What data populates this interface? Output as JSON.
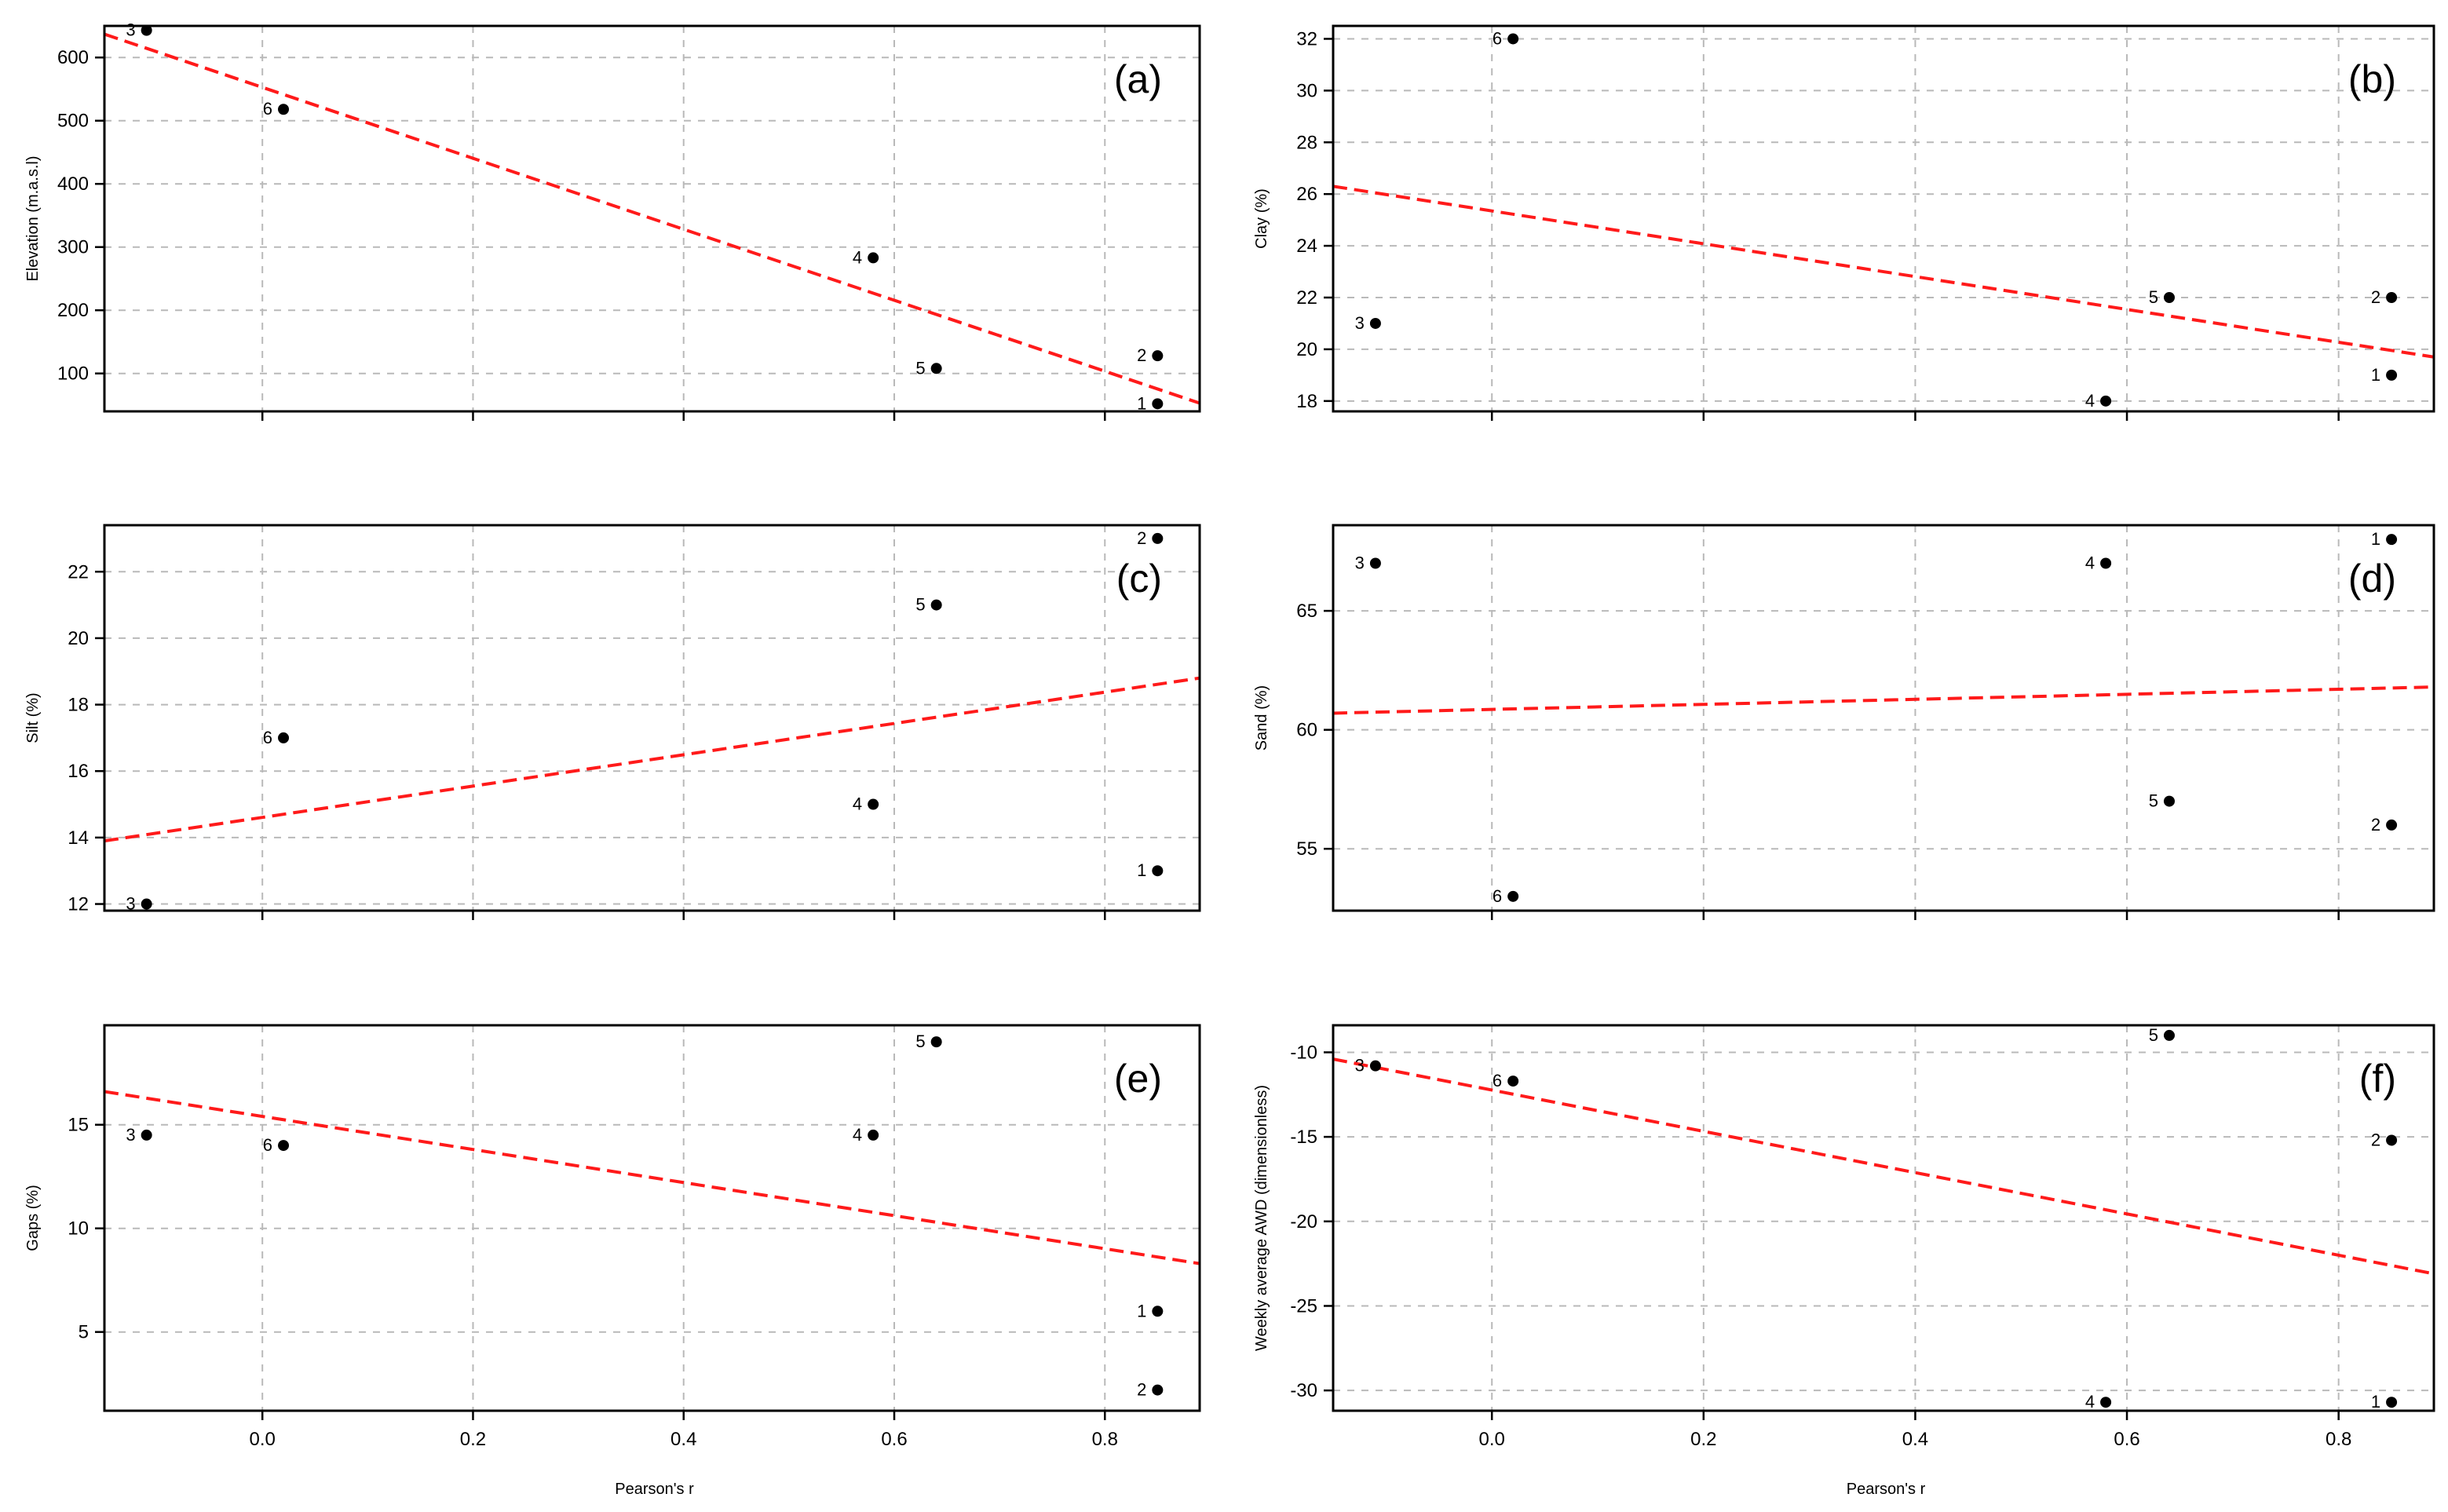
{
  "chart_data": [
    {
      "type": "scatter",
      "panel": "(a)",
      "ylabel": "Elevation (m.a.s.l)",
      "xlabel": "",
      "xlim": [
        -0.15,
        0.89
      ],
      "ylim": [
        40,
        650
      ],
      "xticks": [
        0.0,
        0.2,
        0.4,
        0.6,
        0.8
      ],
      "xticklabels": [],
      "yticks": [
        100,
        200,
        300,
        400,
        500,
        600
      ],
      "points": [
        {
          "label": "1",
          "x": 0.85,
          "y": 52
        },
        {
          "label": "2",
          "x": 0.85,
          "y": 128
        },
        {
          "label": "3",
          "x": -0.11,
          "y": 643
        },
        {
          "label": "4",
          "x": 0.58,
          "y": 283
        },
        {
          "label": "5",
          "x": 0.64,
          "y": 108
        },
        {
          "label": "6",
          "x": 0.02,
          "y": 518
        }
      ],
      "fit": {
        "x": [
          -0.15,
          0.89
        ],
        "y": [
          637,
          53
        ]
      }
    },
    {
      "type": "scatter",
      "panel": "(b)",
      "ylabel": "Clay (%)",
      "xlabel": "",
      "xlim": [
        -0.15,
        0.89
      ],
      "ylim": [
        17.6,
        32.5
      ],
      "xticks": [
        0.0,
        0.2,
        0.4,
        0.6,
        0.8
      ],
      "xticklabels": [],
      "yticks": [
        18,
        20,
        22,
        24,
        26,
        28,
        30,
        32
      ],
      "points": [
        {
          "label": "1",
          "x": 0.85,
          "y": 19
        },
        {
          "label": "2",
          "x": 0.85,
          "y": 22
        },
        {
          "label": "3",
          "x": -0.11,
          "y": 21
        },
        {
          "label": "4",
          "x": 0.58,
          "y": 18
        },
        {
          "label": "5",
          "x": 0.64,
          "y": 22
        },
        {
          "label": "6",
          "x": 0.02,
          "y": 32
        }
      ],
      "fit": {
        "x": [
          -0.15,
          0.89
        ],
        "y": [
          26.3,
          19.7
        ]
      }
    },
    {
      "type": "scatter",
      "panel": "(c)",
      "ylabel": "Silt (%)",
      "xlabel": "",
      "xlim": [
        -0.15,
        0.89
      ],
      "ylim": [
        11.8,
        23.4
      ],
      "xticks": [
        0.0,
        0.2,
        0.4,
        0.6,
        0.8
      ],
      "xticklabels": [],
      "yticks": [
        12,
        14,
        16,
        18,
        20,
        22
      ],
      "points": [
        {
          "label": "1",
          "x": 0.85,
          "y": 13
        },
        {
          "label": "2",
          "x": 0.85,
          "y": 23
        },
        {
          "label": "3",
          "x": -0.11,
          "y": 12
        },
        {
          "label": "4",
          "x": 0.58,
          "y": 15
        },
        {
          "label": "5",
          "x": 0.64,
          "y": 21
        },
        {
          "label": "6",
          "x": 0.02,
          "y": 17
        }
      ],
      "fit": {
        "x": [
          -0.15,
          0.89
        ],
        "y": [
          13.9,
          18.8
        ]
      }
    },
    {
      "type": "scatter",
      "panel": "(d)",
      "ylabel": "Sand (%)",
      "xlabel": "",
      "xlim": [
        -0.15,
        0.89
      ],
      "ylim": [
        52.4,
        68.6
      ],
      "xticks": [
        0.0,
        0.2,
        0.4,
        0.6,
        0.8
      ],
      "xticklabels": [],
      "yticks": [
        55,
        60,
        65
      ],
      "points": [
        {
          "label": "1",
          "x": 0.85,
          "y": 68
        },
        {
          "label": "2",
          "x": 0.85,
          "y": 56
        },
        {
          "label": "3",
          "x": -0.11,
          "y": 67
        },
        {
          "label": "4",
          "x": 0.58,
          "y": 67
        },
        {
          "label": "5",
          "x": 0.64,
          "y": 57
        },
        {
          "label": "6",
          "x": 0.02,
          "y": 53
        }
      ],
      "fit": {
        "x": [
          -0.15,
          0.89
        ],
        "y": [
          60.7,
          61.8
        ]
      }
    },
    {
      "type": "scatter",
      "panel": "(e)",
      "ylabel": "Gaps (%)",
      "xlabel": "Pearson's r",
      "xlim": [
        -0.15,
        0.89
      ],
      "ylim": [
        1.2,
        19.8
      ],
      "xticks": [
        0.0,
        0.2,
        0.4,
        0.6,
        0.8
      ],
      "xticklabels": [
        "0.0",
        "0.2",
        "0.4",
        "0.6",
        "0.8"
      ],
      "yticks": [
        5,
        10,
        15
      ],
      "points": [
        {
          "label": "1",
          "x": 0.85,
          "y": 6
        },
        {
          "label": "2",
          "x": 0.85,
          "y": 2.2
        },
        {
          "label": "3",
          "x": -0.11,
          "y": 14.5
        },
        {
          "label": "4",
          "x": 0.58,
          "y": 14.5
        },
        {
          "label": "5",
          "x": 0.64,
          "y": 19
        },
        {
          "label": "6",
          "x": 0.02,
          "y": 14
        }
      ],
      "fit": {
        "x": [
          -0.15,
          0.89
        ],
        "y": [
          16.6,
          8.3
        ]
      }
    },
    {
      "type": "scatter",
      "panel": "(f)",
      "ylabel": "Weekly average AWD (dimensionless)",
      "xlabel": "Pearson's r",
      "xlim": [
        -0.15,
        0.89
      ],
      "ylim": [
        -31.2,
        -8.4
      ],
      "xticks": [
        0.0,
        0.2,
        0.4,
        0.6,
        0.8
      ],
      "xticklabels": [
        "0.0",
        "0.2",
        "0.4",
        "0.6",
        "0.8"
      ],
      "yticks": [
        -30,
        -25,
        -20,
        -15,
        -10
      ],
      "points": [
        {
          "label": "1",
          "x": 0.85,
          "y": -30.7
        },
        {
          "label": "2",
          "x": 0.85,
          "y": -15.2
        },
        {
          "label": "3",
          "x": -0.11,
          "y": -10.8
        },
        {
          "label": "4",
          "x": 0.58,
          "y": -30.7
        },
        {
          "label": "5",
          "x": 0.64,
          "y": -9
        },
        {
          "label": "6",
          "x": 0.02,
          "y": -11.7
        }
      ],
      "fit": {
        "x": [
          -0.15,
          0.89
        ],
        "y": [
          -10.4,
          -23.1
        ]
      }
    }
  ]
}
